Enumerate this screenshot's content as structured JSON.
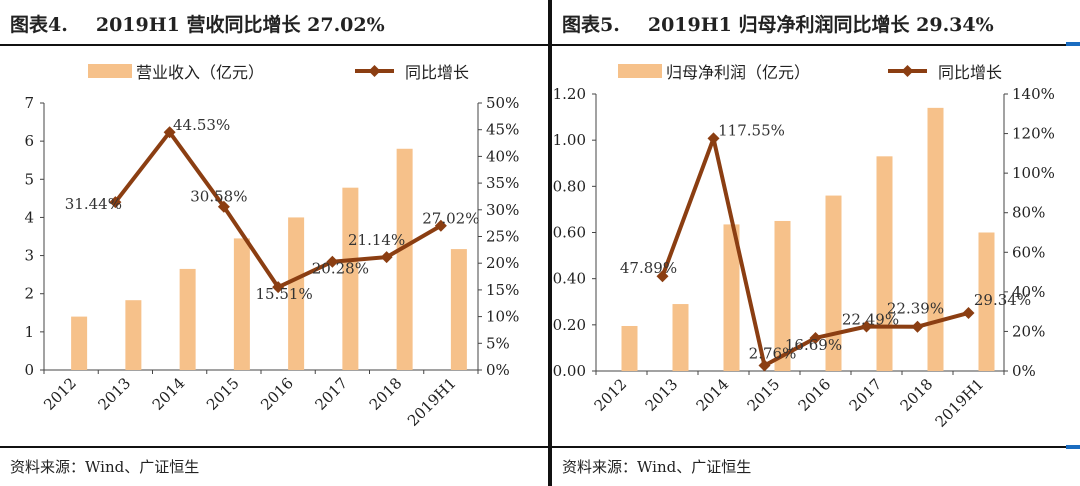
{
  "panels": [
    {
      "header": {
        "fig": "图表4.",
        "title": "2019H1 营收同比增长 27.02%"
      },
      "footer": "资料来源：Wind、广证恒生",
      "chart_data": {
        "type": "bar+line",
        "categories": [
          "2012",
          "2013",
          "2014",
          "2015",
          "2016",
          "2017",
          "2018",
          "2019H1"
        ],
        "series": [
          {
            "name": "营业收入（亿元）",
            "type": "bar",
            "axis": "left",
            "values": [
              1.4,
              1.83,
              2.65,
              3.45,
              4.0,
              4.78,
              5.8,
              3.17
            ]
          },
          {
            "name": "同比增长",
            "type": "line",
            "axis": "right",
            "values": [
              null,
              31.44,
              44.53,
              30.58,
              15.51,
              20.28,
              21.14,
              27.02
            ],
            "labels": [
              "",
              "31.44%",
              "44.53%",
              "30.58%",
              "15.51%",
              "20.28%",
              "21.14%",
              "27.02%"
            ]
          }
        ],
        "y_left": {
          "min": 0,
          "max": 7,
          "ticks": [
            "0",
            "1",
            "2",
            "3",
            "4",
            "5",
            "6",
            "7"
          ]
        },
        "y_right": {
          "min": 0,
          "max": 50,
          "ticks": [
            "0%",
            "5%",
            "10%",
            "15%",
            "20%",
            "25%",
            "30%",
            "35%",
            "40%",
            "45%",
            "50%"
          ]
        },
        "legend_position": "top",
        "colors": {
          "bar": "#F6C18A",
          "line": "#8B3E12"
        }
      }
    },
    {
      "header": {
        "fig": "图表5.",
        "title": "2019H1 归母净利润同比增长 29.34%"
      },
      "footer": "资料来源：Wind、广证恒生",
      "chart_data": {
        "type": "bar+line",
        "categories": [
          "2012",
          "2013",
          "2014",
          "2015",
          "2016",
          "2017",
          "2018",
          "2019H1"
        ],
        "series": [
          {
            "name": "归母净利润（亿元）",
            "type": "bar",
            "axis": "left",
            "values": [
              0.195,
              0.29,
              0.635,
              0.65,
              0.76,
              0.93,
              1.14,
              0.6
            ]
          },
          {
            "name": "同比增长",
            "type": "line",
            "axis": "right",
            "values": [
              null,
              47.89,
              117.55,
              2.76,
              16.69,
              22.49,
              22.39,
              29.34
            ],
            "labels": [
              "",
              "47.89%",
              "117.55%",
              "2.76%",
              "16.69%",
              "22.49%",
              "22.39%",
              "29.34%"
            ]
          }
        ],
        "y_left": {
          "min": 0,
          "max": 1.2,
          "ticks": [
            "0.00",
            "0.20",
            "0.40",
            "0.60",
            "0.80",
            "1.00",
            "1.20"
          ]
        },
        "y_right": {
          "min": 0,
          "max": 140,
          "ticks": [
            "0%",
            "20%",
            "40%",
            "60%",
            "80%",
            "100%",
            "120%",
            "140%"
          ]
        },
        "legend_position": "top",
        "colors": {
          "bar": "#F6C18A",
          "line": "#8B3E12"
        }
      }
    }
  ]
}
